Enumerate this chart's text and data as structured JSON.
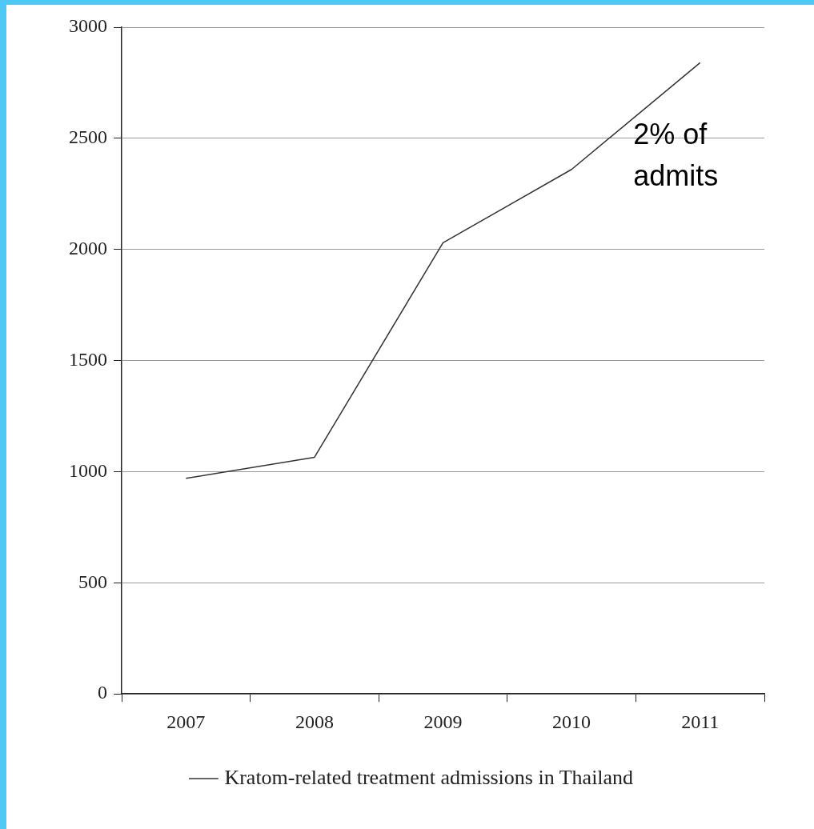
{
  "chart_data": {
    "type": "line",
    "categories": [
      "2007",
      "2008",
      "2009",
      "2010",
      "2011"
    ],
    "series": [
      {
        "name": "Kratom-related treatment admissions in Thailand",
        "color": "#333333",
        "values": [
          970,
          1065,
          2030,
          2360,
          2840
        ]
      }
    ],
    "ylim": [
      0,
      3000
    ],
    "yticks": [
      0,
      500,
      1000,
      1500,
      2000,
      2500,
      3000
    ],
    "grid": "y",
    "legend": "bottom",
    "marker": "none",
    "annotations": [
      "2% of admits"
    ]
  }
}
